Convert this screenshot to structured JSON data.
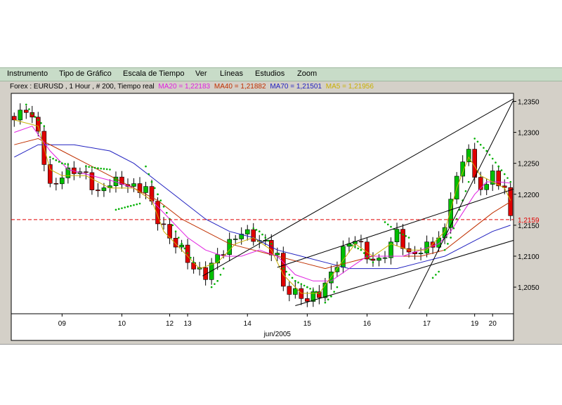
{
  "menu": {
    "items": [
      "Instrumento",
      "Tipo de Gráfico",
      "Escala de Tiempo",
      "Ver",
      "Líneas",
      "Estudios",
      "Zoom"
    ]
  },
  "legend": {
    "instrument": "Forex : EURUSD , 1 Hour , # 200, Tiempo real",
    "ma20": "MA20 = 1,22183",
    "ma40": "MA40 = 1,21882",
    "ma70": "MA70 = 1,21501",
    "ma5": "MA5 = 1,21956"
  },
  "colors": {
    "ma20": "#e020e0",
    "ma40": "#c03000",
    "ma70": "#2020c0",
    "ma5": "#c8b000",
    "sar": "#00b000",
    "up_candle": "#00c000",
    "down_candle": "#e00000",
    "price_line": "#e00000"
  },
  "chart_data": {
    "type": "candlestick",
    "y_ticks": [
      "1,2350",
      "1,2300",
      "1,2250",
      "1,2200",
      "1,2150",
      "1,2100",
      "1,2050"
    ],
    "y_tick_values": [
      1.235,
      1.23,
      1.225,
      1.22,
      1.215,
      1.21,
      1.205
    ],
    "ylim": [
      1.2007,
      1.2363
    ],
    "current_price_label": "1,2159",
    "current_price": 1.2159,
    "x_ticks": [
      "09",
      "10",
      "12",
      "13",
      "14",
      "15",
      "16",
      "17",
      "19",
      "20"
    ],
    "x_tick_positions": [
      8,
      18,
      26,
      29,
      39,
      49,
      59,
      69,
      77,
      80
    ],
    "x_label": "jun/2005",
    "x_label_position": 44,
    "n_bars": 84,
    "candles_close_path": [
      [
        0,
        1.232
      ],
      [
        2,
        1.234
      ],
      [
        4,
        1.23
      ],
      [
        6,
        1.221
      ],
      [
        8,
        1.223
      ],
      [
        10,
        1.224
      ],
      [
        12,
        1.223
      ],
      [
        14,
        1.22
      ],
      [
        16,
        1.222
      ],
      [
        18,
        1.222
      ],
      [
        20,
        1.221
      ],
      [
        22,
        1.221
      ],
      [
        24,
        1.216
      ],
      [
        26,
        1.213
      ],
      [
        28,
        1.211
      ],
      [
        30,
        1.208
      ],
      [
        32,
        1.207
      ],
      [
        34,
        1.21
      ],
      [
        36,
        1.212
      ],
      [
        38,
        1.214
      ],
      [
        40,
        1.213
      ],
      [
        42,
        1.212
      ],
      [
        44,
        1.21
      ],
      [
        45,
        1.205
      ],
      [
        47,
        1.204
      ],
      [
        49,
        1.203
      ],
      [
        51,
        1.204
      ],
      [
        53,
        1.207
      ],
      [
        55,
        1.211
      ],
      [
        57,
        1.213
      ],
      [
        59,
        1.21
      ],
      [
        61,
        1.209
      ],
      [
        63,
        1.212
      ],
      [
        64,
        1.214
      ],
      [
        66,
        1.21
      ],
      [
        68,
        1.211
      ],
      [
        70,
        1.212
      ],
      [
        72,
        1.214
      ],
      [
        73,
        1.22
      ],
      [
        75,
        1.225
      ],
      [
        76,
        1.228
      ],
      [
        77,
        1.222
      ],
      [
        78,
        1.221
      ],
      [
        80,
        1.223
      ],
      [
        82,
        1.221
      ],
      [
        83,
        1.216
      ]
    ],
    "ma5_path": [
      [
        0,
        1.232
      ],
      [
        4,
        1.231
      ],
      [
        6,
        1.224
      ],
      [
        8,
        1.223
      ],
      [
        12,
        1.223
      ],
      [
        16,
        1.221
      ],
      [
        20,
        1.221
      ],
      [
        23,
        1.219
      ],
      [
        25,
        1.214
      ],
      [
        28,
        1.211
      ],
      [
        31,
        1.208
      ],
      [
        34,
        1.209
      ],
      [
        37,
        1.212
      ],
      [
        40,
        1.213
      ],
      [
        43,
        1.211
      ],
      [
        45,
        1.207
      ],
      [
        48,
        1.204
      ],
      [
        51,
        1.204
      ],
      [
        54,
        1.208
      ],
      [
        57,
        1.212
      ],
      [
        60,
        1.21
      ],
      [
        63,
        1.212
      ],
      [
        66,
        1.211
      ],
      [
        69,
        1.211
      ],
      [
        72,
        1.214
      ],
      [
        74,
        1.221
      ],
      [
        76,
        1.226
      ],
      [
        78,
        1.223
      ],
      [
        80,
        1.222
      ],
      [
        82,
        1.221
      ],
      [
        83,
        1.219
      ]
    ],
    "ma20_path": [
      [
        0,
        1.23
      ],
      [
        3,
        1.231
      ],
      [
        6,
        1.227
      ],
      [
        9,
        1.224
      ],
      [
        13,
        1.223
      ],
      [
        17,
        1.222
      ],
      [
        20,
        1.221
      ],
      [
        23,
        1.219
      ],
      [
        26,
        1.216
      ],
      [
        29,
        1.213
      ],
      [
        32,
        1.211
      ],
      [
        35,
        1.21
      ],
      [
        38,
        1.21
      ],
      [
        41,
        1.211
      ],
      [
        44,
        1.21
      ],
      [
        47,
        1.207
      ],
      [
        50,
        1.206
      ],
      [
        53,
        1.206
      ],
      [
        56,
        1.208
      ],
      [
        59,
        1.21
      ],
      [
        62,
        1.21
      ],
      [
        65,
        1.21
      ],
      [
        68,
        1.211
      ],
      [
        71,
        1.212
      ],
      [
        73,
        1.214
      ],
      [
        75,
        1.217
      ],
      [
        77,
        1.22
      ],
      [
        79,
        1.222
      ],
      [
        81,
        1.222
      ],
      [
        83,
        1.2218
      ]
    ],
    "ma40_path": [
      [
        0,
        1.228
      ],
      [
        4,
        1.229
      ],
      [
        8,
        1.227
      ],
      [
        12,
        1.225
      ],
      [
        16,
        1.223
      ],
      [
        20,
        1.221
      ],
      [
        24,
        1.219
      ],
      [
        28,
        1.216
      ],
      [
        32,
        1.214
      ],
      [
        36,
        1.212
      ],
      [
        40,
        1.211
      ],
      [
        44,
        1.21
      ],
      [
        48,
        1.209
      ],
      [
        52,
        1.208
      ],
      [
        56,
        1.209
      ],
      [
        60,
        1.21
      ],
      [
        64,
        1.21
      ],
      [
        68,
        1.21
      ],
      [
        72,
        1.211
      ],
      [
        76,
        1.214
      ],
      [
        80,
        1.217
      ],
      [
        83,
        1.2188
      ]
    ],
    "ma70_path": [
      [
        0,
        1.226
      ],
      [
        4,
        1.228
      ],
      [
        10,
        1.228
      ],
      [
        16,
        1.227
      ],
      [
        20,
        1.225
      ],
      [
        24,
        1.222
      ],
      [
        28,
        1.219
      ],
      [
        32,
        1.216
      ],
      [
        36,
        1.214
      ],
      [
        40,
        1.213
      ],
      [
        44,
        1.211
      ],
      [
        48,
        1.21
      ],
      [
        52,
        1.209
      ],
      [
        56,
        1.208
      ],
      [
        60,
        1.208
      ],
      [
        64,
        1.208
      ],
      [
        68,
        1.209
      ],
      [
        72,
        1.21
      ],
      [
        76,
        1.212
      ],
      [
        80,
        1.214
      ],
      [
        83,
        1.215
      ]
    ],
    "sar_segments": [
      [
        [
          2,
          1.2345
        ],
        [
          3,
          1.233
        ],
        [
          4,
          1.232
        ],
        [
          5,
          1.231
        ]
      ],
      [
        [
          6,
          1.226
        ],
        [
          7,
          1.2255
        ],
        [
          8,
          1.225
        ],
        [
          9,
          1.2248
        ]
      ],
      [
        [
          12,
          1.2245
        ],
        [
          14,
          1.2242
        ],
        [
          16,
          1.224
        ]
      ],
      [
        [
          17,
          1.2175
        ],
        [
          19,
          1.218
        ],
        [
          21,
          1.2185
        ]
      ],
      [
        [
          22,
          1.2245
        ],
        [
          23,
          1.222
        ],
        [
          24,
          1.22
        ],
        [
          26,
          1.216
        ],
        [
          28,
          1.212
        ],
        [
          30,
          1.209
        ]
      ],
      [
        [
          33,
          1.205
        ],
        [
          34,
          1.206
        ],
        [
          35,
          1.208
        ]
      ],
      [
        [
          40,
          1.2145
        ],
        [
          41,
          1.214
        ],
        [
          43,
          1.212
        ]
      ],
      [
        [
          45,
          1.208
        ],
        [
          47,
          1.206
        ],
        [
          49,
          1.205
        ],
        [
          51,
          1.204
        ]
      ],
      [
        [
          52,
          1.2025
        ],
        [
          53,
          1.2035
        ],
        [
          54,
          1.205
        ]
      ],
      [
        [
          56,
          1.212
        ],
        [
          58,
          1.211
        ],
        [
          60,
          1.209
        ]
      ],
      [
        [
          62,
          1.2155
        ],
        [
          64,
          1.214
        ],
        [
          66,
          1.213
        ]
      ],
      [
        [
          70,
          1.2065
        ],
        [
          71,
          1.2075
        ]
      ],
      [
        [
          72,
          1.211
        ],
        [
          73,
          1.213
        ],
        [
          74,
          1.216
        ],
        [
          75,
          1.219
        ],
        [
          76,
          1.222
        ]
      ],
      [
        [
          77,
          1.229
        ],
        [
          79,
          1.227
        ],
        [
          81,
          1.2245
        ],
        [
          83,
          1.222
        ]
      ]
    ],
    "trend_lines": [
      [
        [
          31.5,
          1.2068
        ],
        [
          84,
          1.2357
        ]
      ],
      [
        [
          44,
          1.2082
        ],
        [
          84,
          1.221
        ]
      ],
      [
        [
          47,
          1.202
        ],
        [
          84,
          1.2127
        ]
      ],
      [
        [
          66,
          1.2015
        ],
        [
          84,
          1.2362
        ]
      ]
    ]
  }
}
